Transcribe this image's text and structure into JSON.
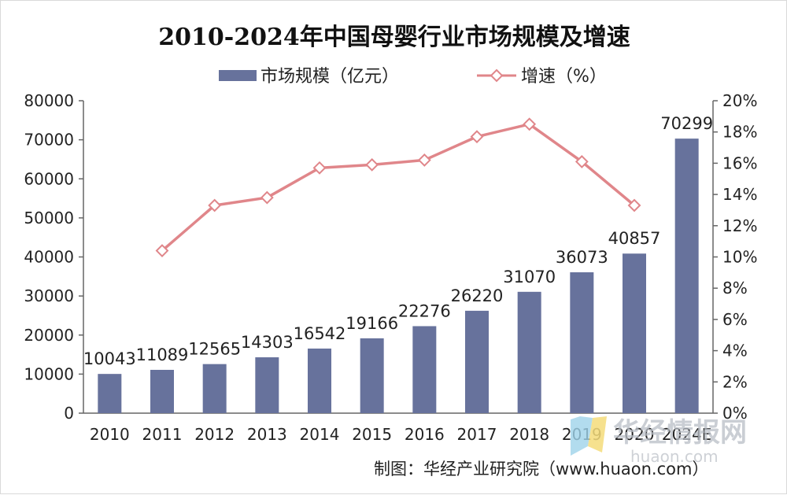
{
  "chart_data": {
    "type": "bar",
    "title": "2010-2024年中国母婴行业市场规模及增速",
    "categories": [
      "2010",
      "2011",
      "2012",
      "2013",
      "2014",
      "2015",
      "2016",
      "2017",
      "2018",
      "2019",
      "2020",
      "2024E"
    ],
    "series": [
      {
        "name": "市场规模（亿元）",
        "type": "bar",
        "axis": "left",
        "color": "#67729c",
        "values": [
          10043,
          11089,
          12565,
          14303,
          16542,
          19166,
          22276,
          26220,
          31070,
          36073,
          40857,
          70299
        ],
        "labels": [
          "10043",
          "11089",
          "12565",
          "14303",
          "16542",
          "19166",
          "22276",
          "26220",
          "31070",
          "36073",
          "40857",
          "70299"
        ]
      },
      {
        "name": "增速（%）",
        "type": "line",
        "axis": "right",
        "color": "#e0868a",
        "marker": "diamond",
        "values": [
          null,
          10.4,
          13.3,
          13.8,
          15.7,
          15.9,
          16.2,
          17.7,
          18.5,
          16.1,
          13.3,
          null
        ]
      }
    ],
    "ylim": [
      0,
      80000
    ],
    "y_ticks": [
      "0",
      "10000",
      "20000",
      "30000",
      "40000",
      "50000",
      "60000",
      "70000",
      "80000"
    ],
    "y2lim": [
      0,
      20
    ],
    "y2_ticks": [
      "0%",
      "2%",
      "4%",
      "6%",
      "8%",
      "10%",
      "12%",
      "14%",
      "16%",
      "18%",
      "20%"
    ],
    "legend_position": "top-center",
    "grid": false
  },
  "source_text": "制图：华经产业研究院（www.huaon.com）",
  "watermark": {
    "text": "华经情报网",
    "sub": "huaon.com"
  }
}
